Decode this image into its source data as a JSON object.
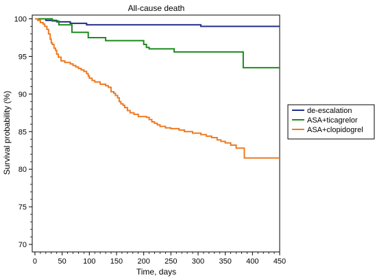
{
  "chart_data": {
    "type": "line",
    "title": "All-cause death",
    "xlabel": "Time, days",
    "ylabel": "Survival probability (%)",
    "xlim": [
      -5,
      450
    ],
    "ylim": [
      69,
      100.5
    ],
    "x_ticks": [
      0,
      50,
      100,
      150,
      200,
      250,
      300,
      350,
      400,
      450
    ],
    "y_ticks": [
      70,
      75,
      80,
      85,
      90,
      95,
      100
    ],
    "grid": false,
    "legend_position": "right",
    "series": [
      {
        "name": "de-escalation",
        "color": "#1f2b8c",
        "x": [
          0,
          20,
          40,
          65,
          95,
          305,
          450
        ],
        "y": [
          100,
          99.8,
          99.6,
          99.4,
          99.2,
          99.0,
          99.0
        ]
      },
      {
        "name": "ASA+ticagrelor",
        "color": "#1a8a1a",
        "x": [
          0,
          32,
          44,
          68,
          98,
          130,
          200,
          205,
          210,
          256,
          383,
          450
        ],
        "y": [
          100,
          99.7,
          99.2,
          98.2,
          97.5,
          97.1,
          96.6,
          96.2,
          96.0,
          95.6,
          93.5,
          93.5
        ],
        "marks": "step"
      },
      {
        "name": "ASA+clopidogrel",
        "color": "#ee7a20",
        "marks": "step",
        "x": [
          0,
          5,
          10,
          15,
          18,
          22,
          25,
          28,
          30,
          32,
          35,
          38,
          40,
          43,
          48,
          55,
          65,
          70,
          75,
          80,
          85,
          90,
          95,
          98,
          100,
          105,
          110,
          120,
          130,
          135,
          140,
          145,
          148,
          152,
          155,
          158,
          162,
          165,
          170,
          175,
          182,
          190,
          205,
          210,
          215,
          220,
          225,
          230,
          240,
          250,
          265,
          275,
          290,
          305,
          315,
          325,
          335,
          342,
          350,
          360,
          370,
          385,
          450
        ],
        "y": [
          100,
          99.8,
          99.5,
          99.3,
          99.0,
          98.6,
          98.0,
          97.3,
          96.8,
          96.6,
          96.1,
          95.8,
          95.3,
          94.9,
          94.4,
          94.2,
          94.0,
          93.8,
          93.6,
          93.4,
          93.2,
          93.0,
          92.7,
          92.4,
          92.1,
          91.8,
          91.6,
          91.3,
          91.1,
          90.9,
          90.3,
          90.1,
          89.8,
          89.5,
          89.0,
          88.7,
          88.5,
          88.2,
          87.8,
          87.5,
          87.3,
          87.0,
          86.9,
          86.6,
          86.3,
          86.1,
          85.9,
          85.7,
          85.5,
          85.4,
          85.2,
          85.0,
          84.8,
          84.6,
          84.4,
          84.2,
          83.9,
          83.7,
          83.5,
          83.2,
          82.8,
          81.5,
          81.5
        ]
      }
    ]
  }
}
